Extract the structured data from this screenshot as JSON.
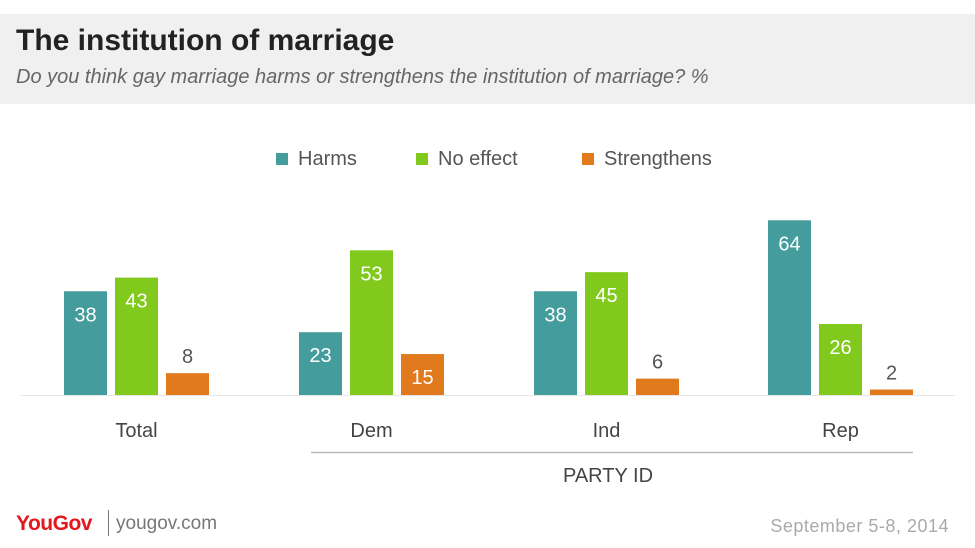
{
  "header": {
    "title": "The institution of marriage",
    "subtitle": "Do you think gay marriage harms or strengthens the institution of marriage? %"
  },
  "chart_data": {
    "type": "bar",
    "categories": [
      "Total",
      "Dem",
      "Ind",
      "Rep"
    ],
    "series": [
      {
        "name": "Harms",
        "color": "#449c9c",
        "values": [
          38,
          23,
          38,
          64
        ]
      },
      {
        "name": "No effect",
        "color": "#82c91e",
        "values": [
          43,
          53,
          45,
          26
        ]
      },
      {
        "name": "Strengthens",
        "color": "#e07a1c",
        "values": [
          8,
          15,
          6,
          2
        ]
      }
    ],
    "group_label": "PARTY ID",
    "grouped_categories": [
      "Dem",
      "Ind",
      "Rep"
    ],
    "legend_position": "top-center",
    "grid": false
  },
  "footer": {
    "brand": "YouGov",
    "url": "yougov.com",
    "date": "September 5-8, 2014"
  }
}
